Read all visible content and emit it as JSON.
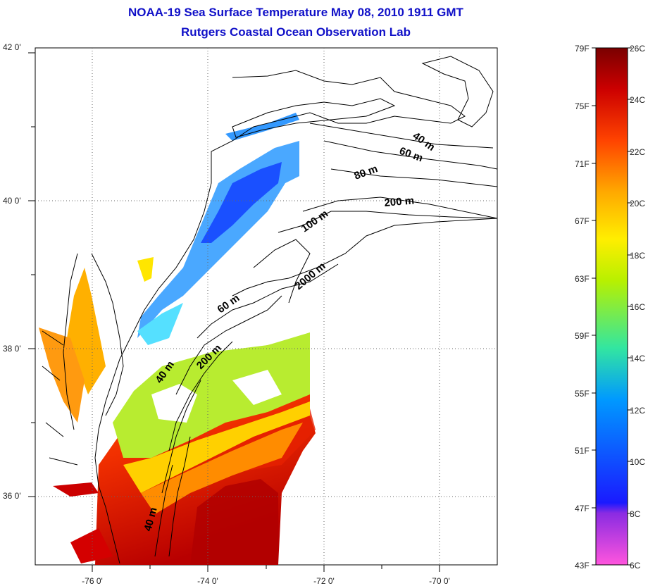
{
  "title": "NOAA-19 Sea Surface Temperature May 08, 2010 1911 GMT",
  "subtitle": "Rutgers Coastal Ocean Observation Lab",
  "latitude_labels": [
    "42 0'",
    "40 0'",
    "38 0'",
    "36 0'"
  ],
  "longitude_labels": [
    "-76 0'",
    "-74 0'",
    "-72 0'",
    "-70 0'"
  ],
  "depth_contour_labels": [
    "40 m",
    "60 m",
    "80 m",
    "200 m",
    "100 m",
    "2000 m",
    "60 m",
    "200 m",
    "40 m",
    "40 m"
  ],
  "colorbar": {
    "fahrenheit_labels": [
      "79F",
      "75F",
      "71F",
      "67F",
      "63F",
      "59F",
      "55F",
      "51F",
      "47F",
      "43F"
    ],
    "celsius_labels": [
      "26C",
      "24C",
      "22C",
      "20C",
      "18C",
      "16C",
      "14C",
      "12C",
      "10C",
      "8C",
      "6C"
    ],
    "range_c": [
      6,
      26
    ],
    "colors": [
      "#ff55dd",
      "#8a2be2",
      "#1a1aff",
      "#00c8ff",
      "#33e6a0",
      "#d0f000",
      "#ffe000",
      "#ff9a00",
      "#ee2200",
      "#7a0000"
    ]
  },
  "map": {
    "lon_range": [
      -77,
      -69
    ],
    "lat_range": [
      35,
      42
    ],
    "colors": {
      "cold": "#2244ff",
      "cool": "#55bbff",
      "mild": "#7de889",
      "warm": "#ffcc00",
      "hot": "#ff3300",
      "very_hot": "#c80000",
      "land_line": "#000000"
    }
  }
}
